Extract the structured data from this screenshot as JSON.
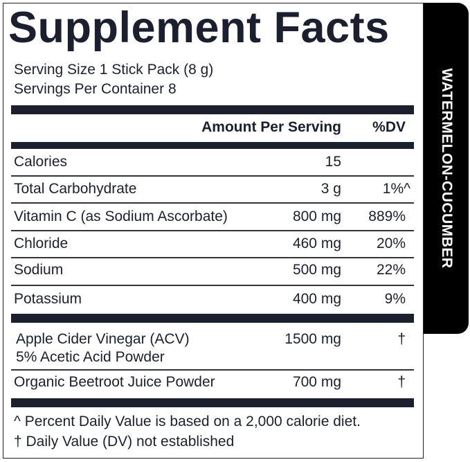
{
  "title": "Supplement Facts",
  "flavor": "WATERMELON-CUCUMBER",
  "serving_size": "Serving Size 1 Stick Pack (8 g)",
  "servings_per_container": "Servings Per Container 8",
  "header": {
    "amount": "Amount Per Serving",
    "dv": "%DV"
  },
  "rows": [
    {
      "name": "Calories",
      "amount": "15",
      "dv": ""
    },
    {
      "name": "Total Carbohydrate",
      "amount": "3 g",
      "dv": "1%^"
    },
    {
      "name": "Vitamin C (as Sodium Ascorbate)",
      "amount": "800 mg",
      "dv": "889%"
    },
    {
      "name": "Chloride",
      "amount": "460 mg",
      "dv": "20%"
    },
    {
      "name": "Sodium",
      "amount": "500 mg",
      "dv": "22%"
    },
    {
      "name": "Potassium",
      "amount": "400 mg",
      "dv": "9%"
    }
  ],
  "other": [
    {
      "name": "Apple Cider Vinegar (ACV)",
      "name2": "5% Acetic Acid Powder",
      "amount": "1500 mg",
      "dv": "†"
    },
    {
      "name": "Organic Beetroot Juice Powder",
      "amount": "700 mg",
      "dv": "†"
    }
  ],
  "footnotes": [
    "^ Percent Daily Value is based on a 2,000 calorie diet.",
    "† Daily Value (DV) not established"
  ],
  "colors": {
    "ink": "#1c1f2e",
    "tab": "#000000"
  }
}
